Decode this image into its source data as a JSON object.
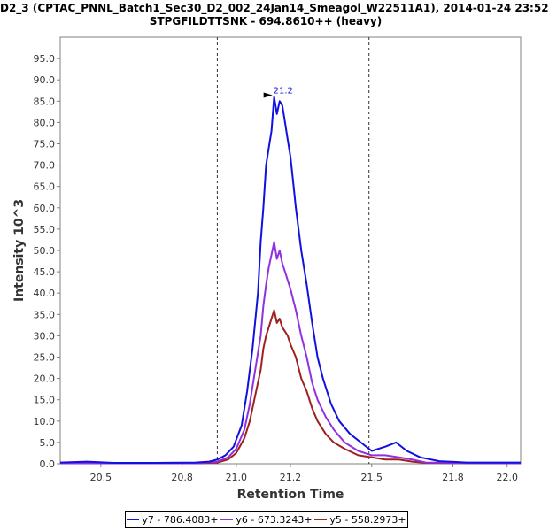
{
  "chart_data": {
    "type": "line",
    "title": "D2_3 (CPTAC_PNNL_Batch1_Sec30_D2_002_24Jan14_Smeagol_W22511A1), 2014-01-24 23:52",
    "subtitle": "STPGFILDTTSNK - 694.8610++ (heavy)",
    "xlabel": "Retention Time",
    "ylabel": "Intensity 10^3",
    "xlim": [
      20.35,
      22.05
    ],
    "ylim": [
      0,
      100
    ],
    "xticks": [
      20.5,
      20.8,
      21.0,
      21.2,
      21.5,
      21.8,
      22.0
    ],
    "xtick_labels": [
      "20.5",
      "20.8",
      "21.0",
      "21.2",
      "21.5",
      "21.8",
      "22.0"
    ],
    "yticks": [
      0,
      5,
      10,
      15,
      20,
      25,
      30,
      35,
      40,
      45,
      50,
      55,
      60,
      65,
      70,
      75,
      80,
      85,
      90,
      95
    ],
    "ytick_labels": [
      "0.0",
      "5.0",
      "10.0",
      "15.0",
      "20.0",
      "25.0",
      "30.0",
      "35.0",
      "40.0",
      "45.0",
      "50.0",
      "55.0",
      "60.0",
      "65.0",
      "70.0",
      "75.0",
      "80.0",
      "85.0",
      "90.0",
      "95.0"
    ],
    "boundaries": [
      20.93,
      21.49
    ],
    "peak_annotation": {
      "label": "21.2",
      "x": 21.14,
      "y": 86
    },
    "series": [
      {
        "name": "y7 - 786.4083+",
        "color": "#1010e0",
        "x": [
          20.35,
          20.45,
          20.55,
          20.7,
          20.85,
          20.9,
          20.93,
          20.96,
          20.99,
          21.02,
          21.04,
          21.06,
          21.08,
          21.09,
          21.1,
          21.11,
          21.12,
          21.13,
          21.14,
          21.15,
          21.16,
          21.17,
          21.18,
          21.19,
          21.2,
          21.21,
          21.22,
          21.24,
          21.26,
          21.28,
          21.3,
          21.32,
          21.35,
          21.38,
          21.42,
          21.46,
          21.5,
          21.55,
          21.59,
          21.63,
          21.68,
          21.75,
          21.85,
          22.05
        ],
        "y": [
          0.3,
          0.5,
          0.2,
          0.2,
          0.3,
          0.5,
          1.0,
          2.0,
          4.0,
          9.0,
          17.0,
          27.0,
          40.0,
          52.0,
          60.0,
          70.0,
          74.0,
          78.0,
          86.0,
          82.0,
          85.0,
          84.0,
          80.0,
          76.0,
          72.0,
          66.0,
          60.0,
          50.0,
          42.0,
          33.0,
          25.0,
          20.0,
          14.0,
          10.0,
          7.0,
          5.0,
          3.0,
          4.0,
          5.0,
          3.0,
          1.5,
          0.6,
          0.3,
          0.3
        ]
      },
      {
        "name": "y6 - 673.3243+",
        "color": "#9030e0",
        "x": [
          20.35,
          20.85,
          20.93,
          20.97,
          21.0,
          21.03,
          21.05,
          21.07,
          21.09,
          21.1,
          21.11,
          21.12,
          21.13,
          21.14,
          21.15,
          21.16,
          21.17,
          21.18,
          21.19,
          21.2,
          21.22,
          21.24,
          21.26,
          21.28,
          21.3,
          21.33,
          21.36,
          21.4,
          21.45,
          21.5,
          21.55,
          21.6,
          21.65,
          21.7,
          22.05
        ],
        "y": [
          0.1,
          0.1,
          0.5,
          1.5,
          3.5,
          8.0,
          14.0,
          22.0,
          30.0,
          37.0,
          42.0,
          46.0,
          49.0,
          52.0,
          48.0,
          50.0,
          47.0,
          45.0,
          43.0,
          41.0,
          36.0,
          30.0,
          25.0,
          19.0,
          15.0,
          11.0,
          8.0,
          5.0,
          3.0,
          2.0,
          2.0,
          1.5,
          1.0,
          0.3,
          0.1
        ]
      },
      {
        "name": "y5 - 558.2973+",
        "color": "#a02020",
        "x": [
          20.35,
          20.85,
          20.93,
          20.97,
          21.0,
          21.03,
          21.05,
          21.07,
          21.09,
          21.1,
          21.11,
          21.12,
          21.13,
          21.14,
          21.15,
          21.16,
          21.17,
          21.18,
          21.19,
          21.2,
          21.22,
          21.24,
          21.26,
          21.28,
          21.3,
          21.33,
          21.36,
          21.4,
          21.45,
          21.5,
          21.55,
          21.6,
          21.65,
          21.7,
          22.05
        ],
        "y": [
          0.1,
          0.1,
          0.3,
          1.0,
          2.5,
          6.0,
          10.0,
          16.0,
          22.0,
          27.0,
          30.0,
          32.0,
          34.0,
          36.0,
          33.0,
          34.0,
          32.0,
          31.0,
          30.0,
          28.0,
          25.0,
          20.0,
          17.0,
          13.0,
          10.0,
          7.0,
          5.0,
          3.5,
          2.0,
          1.5,
          1.0,
          1.0,
          0.5,
          0.2,
          0.1
        ]
      }
    ]
  }
}
